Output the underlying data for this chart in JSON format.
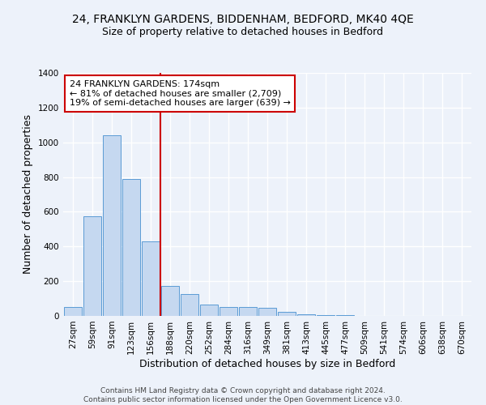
{
  "title": "24, FRANKLYN GARDENS, BIDDENHAM, BEDFORD, MK40 4QE",
  "subtitle": "Size of property relative to detached houses in Bedford",
  "xlabel": "Distribution of detached houses by size in Bedford",
  "ylabel": "Number of detached properties",
  "categories": [
    "27sqm",
    "59sqm",
    "91sqm",
    "123sqm",
    "156sqm",
    "188sqm",
    "220sqm",
    "252sqm",
    "284sqm",
    "316sqm",
    "349sqm",
    "381sqm",
    "413sqm",
    "445sqm",
    "477sqm",
    "509sqm",
    "541sqm",
    "574sqm",
    "606sqm",
    "638sqm",
    "670sqm"
  ],
  "values": [
    50,
    575,
    1040,
    790,
    430,
    175,
    125,
    65,
    50,
    50,
    45,
    25,
    10,
    5,
    5,
    0,
    0,
    0,
    0,
    0,
    0
  ],
  "bar_color": "#c5d8f0",
  "bar_edge_color": "#5b9bd5",
  "ref_line_color": "#cc0000",
  "ref_line_x": 4.5,
  "annotation_text": "24 FRANKLYN GARDENS: 174sqm\n← 81% of detached houses are smaller (2,709)\n19% of semi-detached houses are larger (639) →",
  "annotation_box_color": "#ffffff",
  "annotation_box_edge": "#cc0000",
  "ylim": [
    0,
    1400
  ],
  "yticks": [
    0,
    200,
    400,
    600,
    800,
    1000,
    1200,
    1400
  ],
  "title_fontsize": 10,
  "subtitle_fontsize": 9,
  "axis_label_fontsize": 9,
  "tick_fontsize": 7.5,
  "annotation_fontsize": 8,
  "footer_text": "Contains HM Land Registry data © Crown copyright and database right 2024.\nContains public sector information licensed under the Open Government Licence v3.0.",
  "background_color": "#edf2fa",
  "plot_background": "#edf2fa",
  "grid_color": "#ffffff",
  "grid_linewidth": 1.0,
  "footer_fontsize": 6.5,
  "footer_color": "#444444"
}
